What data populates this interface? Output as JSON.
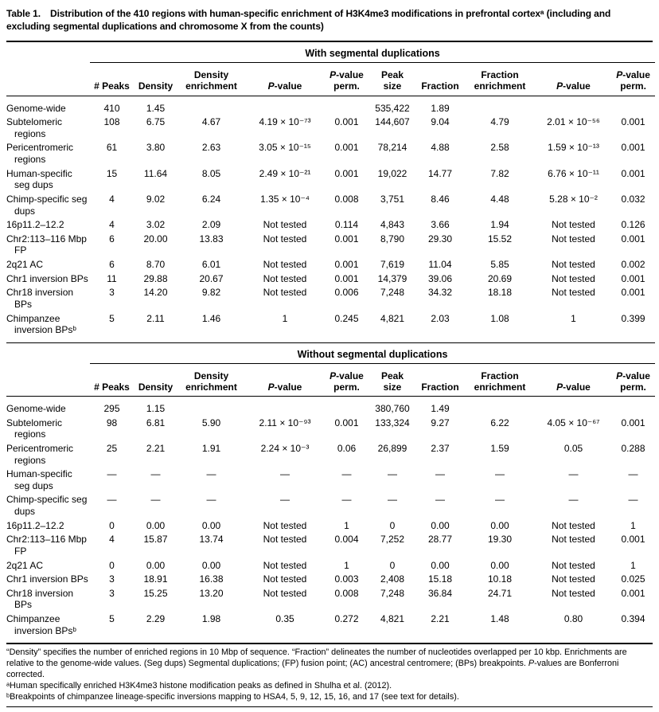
{
  "title": {
    "label": "Table 1.",
    "text": "Distribution of the 410 regions with human-specific enrichment of H3K4me3 modifications in prefrontal cortexᵃ (including and excluding segmental duplications and chromosome X from the counts)"
  },
  "columns": [
    "# Peaks",
    "Density",
    "Density\nenrichment",
    "P-value",
    "P-value\nperm.",
    "Peak\nsize",
    "Fraction",
    "Fraction\nenrichment",
    "P-value",
    "P-value\nperm."
  ],
  "sections": [
    {
      "heading": "With segmental duplications",
      "rows": [
        {
          "label": "Genome-wide",
          "values": [
            "410",
            "1.45",
            "",
            "",
            "",
            "535,422",
            "1.89",
            "",
            "",
            ""
          ]
        },
        {
          "label": "Subtelomeric regions",
          "values": [
            "108",
            "6.75",
            "4.67",
            "4.19 × 10⁻⁷³",
            "0.001",
            "144,607",
            "9.04",
            "4.79",
            "2.01 × 10⁻⁵⁶",
            "0.001"
          ]
        },
        {
          "label": "Pericentromeric regions",
          "values": [
            "61",
            "3.80",
            "2.63",
            "3.05 × 10⁻¹⁵",
            "0.001",
            "78,214",
            "4.88",
            "2.58",
            "1.59 × 10⁻¹³",
            "0.001"
          ]
        },
        {
          "label": "Human-specific seg dups",
          "values": [
            "15",
            "11.64",
            "8.05",
            "2.49 × 10⁻²¹",
            "0.001",
            "19,022",
            "14.77",
            "7.82",
            "6.76 × 10⁻¹¹",
            "0.001"
          ]
        },
        {
          "label": "Chimp-specific seg dups",
          "values": [
            "4",
            "9.02",
            "6.24",
            "1.35 × 10⁻⁴",
            "0.008",
            "3,751",
            "8.46",
            "4.48",
            "5.28 × 10⁻²",
            "0.032"
          ]
        },
        {
          "label": "16p11.2–12.2",
          "values": [
            "4",
            "3.02",
            "2.09",
            "Not tested",
            "0.114",
            "4,843",
            "3.66",
            "1.94",
            "Not tested",
            "0.126"
          ]
        },
        {
          "label": "Chr2:113–116 Mbp FP",
          "values": [
            "6",
            "20.00",
            "13.83",
            "Not tested",
            "0.001",
            "8,790",
            "29.30",
            "15.52",
            "Not tested",
            "0.001"
          ]
        },
        {
          "label": "2q21 AC",
          "values": [
            "6",
            "8.70",
            "6.01",
            "Not tested",
            "0.001",
            "7,619",
            "11.04",
            "5.85",
            "Not tested",
            "0.002"
          ]
        },
        {
          "label": "Chr1 inversion BPs",
          "values": [
            "11",
            "29.88",
            "20.67",
            "Not tested",
            "0.001",
            "14,379",
            "39.06",
            "20.69",
            "Not tested",
            "0.001"
          ]
        },
        {
          "label": "Chr18 inversion BPs",
          "values": [
            "3",
            "14.20",
            "9.82",
            "Not tested",
            "0.006",
            "7,248",
            "34.32",
            "18.18",
            "Not tested",
            "0.001"
          ]
        },
        {
          "label": "Chimpanzee inversion BPsᵇ",
          "values": [
            "5",
            "2.11",
            "1.46",
            "1",
            "0.245",
            "4,821",
            "2.03",
            "1.08",
            "1",
            "0.399"
          ]
        }
      ]
    },
    {
      "heading": "Without segmental duplications",
      "rows": [
        {
          "label": "Genome-wide",
          "values": [
            "295",
            "1.15",
            "",
            "",
            "",
            "380,760",
            "1.49",
            "",
            "",
            ""
          ]
        },
        {
          "label": "Subtelomeric regions",
          "values": [
            "98",
            "6.81",
            "5.90",
            "2.11 × 10⁻⁹³",
            "0.001",
            "133,324",
            "9.27",
            "6.22",
            "4.05 × 10⁻⁶⁷",
            "0.001"
          ]
        },
        {
          "label": "Pericentromeric regions",
          "values": [
            "25",
            "2.21",
            "1.91",
            "2.24 × 10⁻³",
            "0.06",
            "26,899",
            "2.37",
            "1.59",
            "0.05",
            "0.288"
          ]
        },
        {
          "label": "Human-specific seg dups",
          "values": [
            "—",
            "—",
            "—",
            "—",
            "—",
            "—",
            "—",
            "—",
            "—",
            "—"
          ]
        },
        {
          "label": "Chimp-specific seg dups",
          "values": [
            "—",
            "—",
            "—",
            "—",
            "—",
            "—",
            "—",
            "—",
            "—",
            "—"
          ]
        },
        {
          "label": "16p11.2–12.2",
          "values": [
            "0",
            "0.00",
            "0.00",
            "Not tested",
            "1",
            "0",
            "0.00",
            "0.00",
            "Not tested",
            "1"
          ]
        },
        {
          "label": "Chr2:113–116 Mbp FP",
          "values": [
            "4",
            "15.87",
            "13.74",
            "Not tested",
            "0.004",
            "7,252",
            "28.77",
            "19.30",
            "Not tested",
            "0.001"
          ]
        },
        {
          "label": "2q21 AC",
          "values": [
            "0",
            "0.00",
            "0.00",
            "Not tested",
            "1",
            "0",
            "0.00",
            "0.00",
            "Not tested",
            "1"
          ]
        },
        {
          "label": "Chr1 inversion BPs",
          "values": [
            "3",
            "18.91",
            "16.38",
            "Not tested",
            "0.003",
            "2,408",
            "15.18",
            "10.18",
            "Not tested",
            "0.025"
          ]
        },
        {
          "label": "Chr18 inversion BPs",
          "values": [
            "3",
            "15.25",
            "13.20",
            "Not tested",
            "0.008",
            "7,248",
            "36.84",
            "24.71",
            "Not tested",
            "0.001"
          ]
        },
        {
          "label": "Chimpanzee inversion BPsᵇ",
          "values": [
            "5",
            "2.29",
            "1.98",
            "0.35",
            "0.272",
            "4,821",
            "2.21",
            "1.48",
            "0.80",
            "0.394"
          ]
        }
      ]
    }
  ],
  "footnotes": [
    "“Density” specifies the number of enriched regions in 10 Mbp of sequence. “Fraction” delineates the number of nucleotides overlapped per 10 kbp. Enrichments are relative to the genome-wide values. (Seg dups) Segmental duplications; (FP) fusion point; (AC) ancestral centromere; (BPs) breakpoints. P-values are Bonferroni corrected.",
    "ᵃHuman specifically enriched H3K4me3 histone modification peaks as defined in Shulha et al. (2012).",
    "ᵇBreakpoints of chimpanzee lineage-specific inversions mapping to HSA4, 5, 9, 12, 15, 16, and 17 (see text for details)."
  ]
}
